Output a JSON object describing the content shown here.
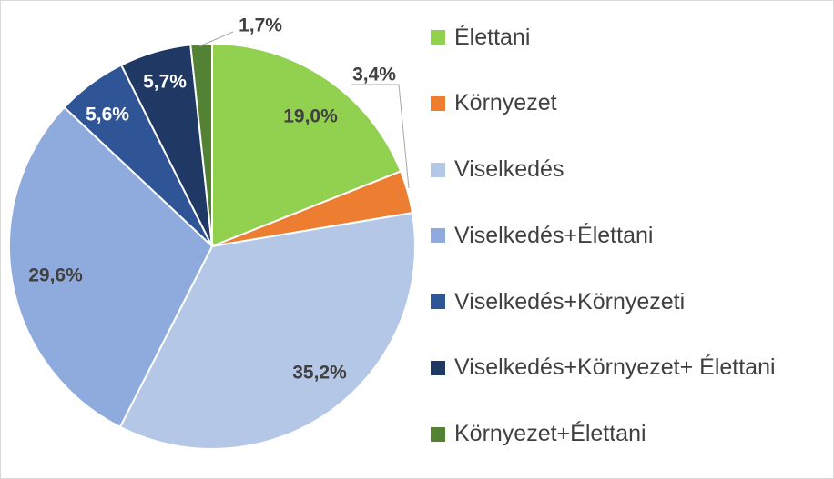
{
  "chart_data": {
    "type": "pie",
    "categories": [
      "Élettani",
      "Környezet",
      "Viselkedés",
      "Viselkedés+Élettani",
      "Viselkedés+Környezeti",
      "Viselkedés+Környezet+ Élettani",
      "Környezet+Élettani"
    ],
    "values": [
      19.0,
      3.4,
      35.2,
      29.6,
      5.6,
      5.7,
      1.7
    ],
    "data_labels": [
      "19,0%",
      "3,4%",
      "35,2%",
      "29,6%",
      "5,6%",
      "5,7%",
      "1,7%"
    ],
    "colors": [
      "#92d050",
      "#ed7d31",
      "#b4c7e7",
      "#8faadc",
      "#2f5597",
      "#203864",
      "#548235"
    ],
    "label_colors": [
      "#404040",
      "#404040",
      "#404040",
      "#404040",
      "#ffffff",
      "#ffffff",
      "#404040"
    ],
    "start_angle": "12 o'clock",
    "direction": "clockwise",
    "legend_position": "right"
  }
}
